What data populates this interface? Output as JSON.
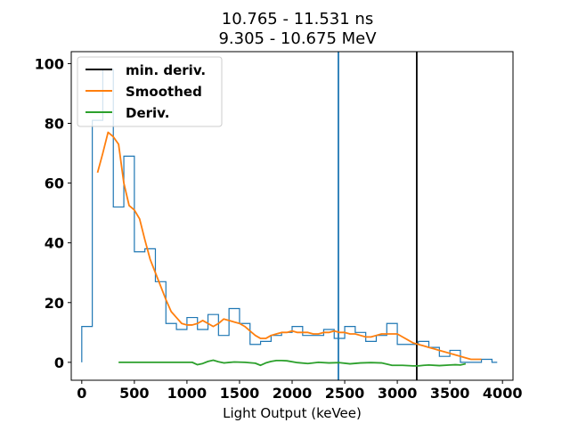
{
  "chart_data": {
    "type": "line",
    "title": [
      "10.765 - 11.531 ns",
      "9.305 - 10.675 MeV"
    ],
    "xlabel": "Light Output (keVee)",
    "ylabel": "",
    "xlim": [
      -100,
      4100
    ],
    "ylim": [
      -6,
      104
    ],
    "xticks": [
      0,
      500,
      1000,
      1500,
      2000,
      2500,
      3000,
      3500,
      4000
    ],
    "yticks": [
      0,
      20,
      40,
      60,
      80,
      100
    ],
    "grid": false,
    "legend_placement": "top-left",
    "legend": [
      {
        "name": "min. deriv.",
        "color": "#000000"
      },
      {
        "name": "Smoothed",
        "color": "#ff7f0e"
      },
      {
        "name": "Deriv.",
        "color": "#2ca02c"
      }
    ],
    "histogram": {
      "color": "#1f77b4",
      "bin_edges": [
        0,
        50,
        100,
        150,
        200,
        250,
        300,
        350,
        400,
        450,
        500,
        550,
        600,
        650,
        700,
        750,
        800,
        850,
        900,
        950,
        1000,
        1050,
        1100,
        1150,
        1200,
        1250,
        1300,
        1350,
        1400,
        1450,
        1500,
        1550,
        1600,
        1650,
        1700,
        1750,
        1800,
        1850,
        1900,
        1950,
        2000,
        2050,
        2100,
        2150,
        2200,
        2250,
        2300,
        2350,
        2400,
        2450,
        2500,
        2550,
        2600,
        2650,
        2700,
        2750,
        2800,
        2850,
        2900,
        2950,
        3000,
        3050,
        3100,
        3150,
        3200,
        3250,
        3300,
        3350,
        3400,
        3450,
        3500,
        3550,
        3600,
        3650,
        3700,
        3750,
        3800,
        3850,
        3900
      ],
      "counts": [
        12,
        12,
        81,
        81,
        98,
        98,
        52,
        52,
        69,
        69,
        37,
        37,
        38,
        38,
        27,
        27,
        13,
        13,
        11,
        11,
        15,
        15,
        11,
        11,
        16,
        16,
        9,
        9,
        18,
        18,
        13,
        13,
        6,
        6,
        7,
        7,
        9,
        9,
        10,
        10,
        12,
        12,
        9,
        9,
        9,
        9,
        11,
        11,
        8,
        8,
        12,
        12,
        10,
        10,
        7,
        7,
        9,
        9,
        13,
        13,
        6,
        6,
        6,
        6,
        7,
        7,
        5,
        5,
        2,
        2,
        4,
        4,
        0,
        0,
        0,
        0,
        1,
        1,
        0
      ]
    },
    "series": [
      {
        "name": "Smoothed",
        "color": "#ff7f0e",
        "x": [
          150,
          200,
          250,
          300,
          350,
          400,
          450,
          500,
          550,
          600,
          650,
          700,
          750,
          800,
          850,
          900,
          950,
          1000,
          1050,
          1100,
          1150,
          1200,
          1250,
          1300,
          1350,
          1400,
          1450,
          1500,
          1550,
          1600,
          1650,
          1700,
          1750,
          1800,
          1850,
          1900,
          1950,
          2000,
          2050,
          2100,
          2150,
          2200,
          2250,
          2300,
          2350,
          2400,
          2450,
          2500,
          2550,
          2600,
          2650,
          2700,
          2750,
          2800,
          2850,
          2900,
          2950,
          3000,
          3050,
          3100,
          3150,
          3200,
          3250,
          3300,
          3350,
          3400,
          3450,
          3500,
          3550,
          3600,
          3650,
          3700,
          3750,
          3800
        ],
        "y": [
          63.5,
          70,
          77,
          75.5,
          73,
          60,
          52.5,
          51,
          48,
          41,
          34.5,
          30,
          25.5,
          21,
          17,
          15,
          13,
          12.5,
          12.5,
          13,
          14,
          13,
          12,
          13,
          14.5,
          14,
          13.5,
          13,
          12,
          10.5,
          9,
          8,
          8,
          9,
          9.5,
          10,
          10,
          10.5,
          10,
          10,
          10,
          9.5,
          9.5,
          10,
          10,
          10.5,
          10,
          10,
          9.5,
          9.5,
          9,
          8.5,
          8.5,
          9,
          9.5,
          9.5,
          9.5,
          9.5,
          8.5,
          7.5,
          6.5,
          6,
          5.5,
          5,
          4.5,
          4,
          3.5,
          3,
          2.5,
          2,
          1.5,
          1,
          1,
          1
        ]
      },
      {
        "name": "Deriv.",
        "color": "#2ca02c",
        "x": [
          350,
          450,
          550,
          650,
          750,
          850,
          950,
          1050,
          1100,
          1150,
          1200,
          1250,
          1300,
          1350,
          1450,
          1550,
          1650,
          1700,
          1750,
          1800,
          1850,
          1900,
          1950,
          2050,
          2150,
          2250,
          2350,
          2450,
          2550,
          2650,
          2750,
          2850,
          2950,
          3050,
          3150,
          3200,
          3250,
          3300,
          3400,
          3500,
          3550,
          3600,
          3650
        ],
        "y": [
          0,
          0,
          0,
          0,
          0,
          0,
          0,
          0,
          -0.8,
          -0.4,
          0.3,
          0.7,
          0.2,
          -0.2,
          0.1,
          0,
          -0.3,
          -1,
          -0.2,
          0.3,
          0.6,
          0.6,
          0.5,
          -0.1,
          -0.4,
          0,
          -0.2,
          -0.1,
          -0.5,
          -0.2,
          -0.1,
          -0.2,
          -1,
          -1,
          -1.2,
          -1.2,
          -1,
          -0.9,
          -1.1,
          -0.9,
          -0.8,
          -0.9,
          -0.5
        ]
      }
    ],
    "vlines": [
      {
        "name": "min. deriv.",
        "x": 3185,
        "color": "#000000"
      },
      {
        "name": "",
        "x": 2440,
        "color": "#1f77b4"
      }
    ]
  }
}
